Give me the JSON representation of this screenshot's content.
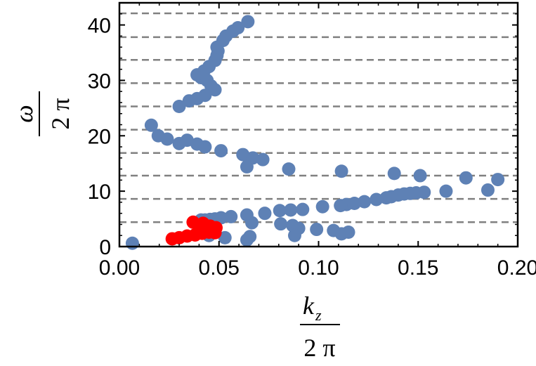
{
  "chart_data": {
    "type": "scatter",
    "xlabel": {
      "numerator": "k",
      "subscript": "z",
      "denominator": "2 π"
    },
    "ylabel": {
      "numerator": "ω",
      "denominator": "2 π"
    },
    "xlim": [
      0.0,
      0.2
    ],
    "ylim": [
      0,
      44
    ],
    "xticks": [
      "0.00",
      "0.05",
      "0.10",
      "0.15",
      "0.20"
    ],
    "xtick_values": [
      0.0,
      0.05,
      0.1,
      0.15,
      0.2
    ],
    "yticks": [
      "0",
      "10",
      "20",
      "30",
      "40"
    ],
    "ytick_values": [
      0,
      10,
      20,
      30,
      40
    ],
    "reference_lines": [
      4.4,
      8.6,
      12.8,
      16.9,
      21.1,
      25.3,
      29.5,
      33.7,
      37.8,
      42.1
    ],
    "reference_line_color": "#808080",
    "series": [
      {
        "color": "#5E81B5",
        "points": [
          [
            0.0065,
            0.6
          ],
          [
            0.0645,
            40.6
          ],
          [
            0.0595,
            39.5
          ],
          [
            0.057,
            38.9
          ],
          [
            0.0535,
            38.0
          ],
          [
            0.052,
            37.2
          ],
          [
            0.049,
            36.0
          ],
          [
            0.0495,
            35.3
          ],
          [
            0.049,
            34.5
          ],
          [
            0.048,
            33.6
          ],
          [
            0.045,
            32.5
          ],
          [
            0.0425,
            31.7
          ],
          [
            0.039,
            31.0
          ],
          [
            0.041,
            30.5
          ],
          [
            0.044,
            30.0
          ],
          [
            0.046,
            29.0
          ],
          [
            0.048,
            28.3
          ],
          [
            0.043,
            27.3
          ],
          [
            0.039,
            26.7
          ],
          [
            0.035,
            26.3
          ],
          [
            0.03,
            25.3
          ],
          [
            0.016,
            21.9
          ],
          [
            0.0195,
            20.0
          ],
          [
            0.024,
            19.4
          ],
          [
            0.03,
            18.6
          ],
          [
            0.034,
            19.2
          ],
          [
            0.039,
            18.5
          ],
          [
            0.043,
            18.0
          ],
          [
            0.051,
            17.3
          ],
          [
            0.062,
            16.6
          ],
          [
            0.067,
            16.0
          ],
          [
            0.072,
            15.7
          ],
          [
            0.064,
            14.4
          ],
          [
            0.085,
            14.0
          ],
          [
            0.1115,
            13.6
          ],
          [
            0.138,
            13.2
          ],
          [
            0.151,
            12.8
          ],
          [
            0.174,
            12.4
          ],
          [
            0.19,
            12.1
          ],
          [
            0.185,
            10.2
          ],
          [
            0.164,
            10.0
          ],
          [
            0.153,
            9.8
          ],
          [
            0.149,
            9.7
          ],
          [
            0.146,
            9.6
          ],
          [
            0.143,
            9.5
          ],
          [
            0.14,
            9.3
          ],
          [
            0.1365,
            9.0
          ],
          [
            0.134,
            8.8
          ],
          [
            0.129,
            8.5
          ],
          [
            0.123,
            8.1
          ],
          [
            0.118,
            7.8
          ],
          [
            0.114,
            7.6
          ],
          [
            0.111,
            7.4
          ],
          [
            0.102,
            7.2
          ],
          [
            0.092,
            6.7
          ],
          [
            0.086,
            6.6
          ],
          [
            0.0805,
            6.5
          ],
          [
            0.073,
            6.0
          ],
          [
            0.064,
            5.7
          ],
          [
            0.056,
            5.4
          ],
          [
            0.051,
            5.2
          ],
          [
            0.048,
            5.0
          ],
          [
            0.0455,
            4.9
          ],
          [
            0.043,
            4.8
          ],
          [
            0.041,
            4.8
          ],
          [
            0.0665,
            4.3
          ],
          [
            0.081,
            4.1
          ],
          [
            0.087,
            3.8
          ],
          [
            0.09,
            3.3
          ],
          [
            0.099,
            3.1
          ],
          [
            0.1075,
            2.9
          ],
          [
            0.115,
            2.6
          ],
          [
            0.1115,
            2.3
          ],
          [
            0.088,
            2.0
          ],
          [
            0.0655,
            1.8
          ],
          [
            0.064,
            1.2
          ],
          [
            0.053,
            1.6
          ],
          [
            0.045,
            2.0
          ]
        ]
      },
      {
        "color": "#FF0000",
        "points": [
          [
            0.0265,
            1.4
          ],
          [
            0.03,
            1.6
          ],
          [
            0.034,
            1.9
          ],
          [
            0.038,
            2.1
          ],
          [
            0.0415,
            2.4
          ],
          [
            0.045,
            2.6
          ],
          [
            0.048,
            2.5
          ],
          [
            0.047,
            3.0
          ],
          [
            0.044,
            3.4
          ],
          [
            0.04,
            3.8
          ],
          [
            0.037,
            4.4
          ],
          [
            0.042,
            4.2
          ],
          [
            0.0455,
            3.7
          ],
          [
            0.0485,
            3.4
          ]
        ]
      }
    ]
  }
}
